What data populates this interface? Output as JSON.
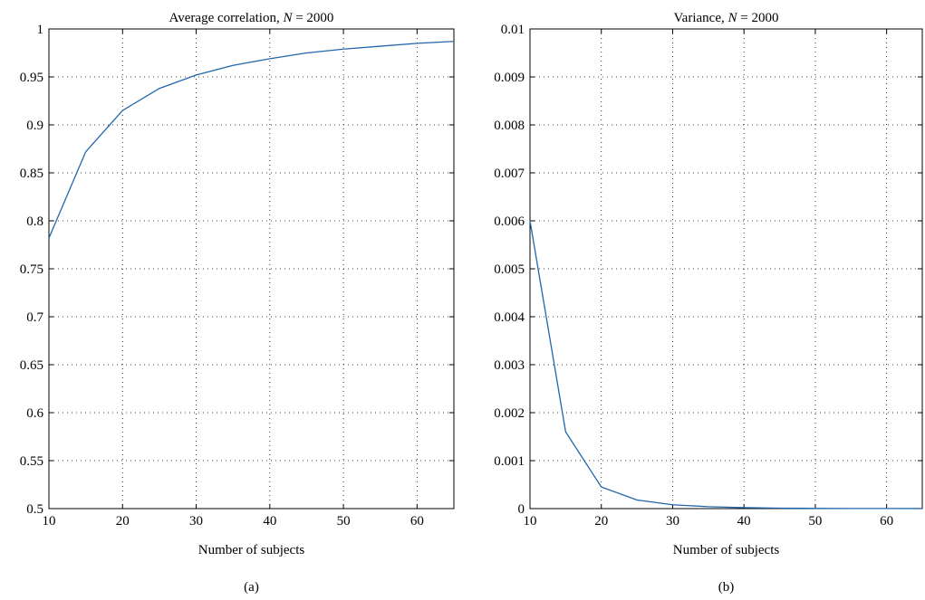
{
  "panels": [
    {
      "caption": "(a)"
    },
    {
      "caption": "(b)"
    }
  ],
  "chart_data": [
    {
      "type": "line",
      "title": "Average correlation, N = 2000",
      "title_prefix": "Average correlation, ",
      "title_var": "N",
      "title_suffix": " = 2000",
      "xlabel": "Number of subjects",
      "ylabel": "",
      "xlim": [
        10,
        65
      ],
      "ylim": [
        0.5,
        1
      ],
      "xticks": [
        10,
        20,
        30,
        40,
        50,
        60
      ],
      "yticks": [
        0.5,
        0.55,
        0.6,
        0.65,
        0.7,
        0.75,
        0.8,
        0.85,
        0.9,
        0.95,
        1
      ],
      "xtick_labels": [
        "10",
        "20",
        "30",
        "40",
        "50",
        "60"
      ],
      "ytick_labels": [
        "0.5",
        "0.55",
        "0.6",
        "0.65",
        "0.7",
        "0.75",
        "0.8",
        "0.85",
        "0.9",
        "0.95",
        "1"
      ],
      "grid": true,
      "line_color": "#2166ac",
      "series": [
        {
          "x": [
            10,
            15,
            20,
            25,
            30,
            35,
            40,
            45,
            50,
            55,
            60,
            65
          ],
          "values": [
            0.782,
            0.872,
            0.915,
            0.938,
            0.952,
            0.962,
            0.969,
            0.975,
            0.979,
            0.982,
            0.985,
            0.987
          ]
        }
      ]
    },
    {
      "type": "line",
      "title": "Variance, N = 2000",
      "title_prefix": "Variance, ",
      "title_var": "N",
      "title_suffix": " = 2000",
      "xlabel": "Number of subjects",
      "ylabel": "",
      "xlim": [
        10,
        65
      ],
      "ylim": [
        0,
        0.01
      ],
      "xticks": [
        10,
        20,
        30,
        40,
        50,
        60
      ],
      "yticks": [
        0,
        0.001,
        0.002,
        0.003,
        0.004,
        0.005,
        0.006,
        0.007,
        0.008,
        0.009,
        0.01
      ],
      "xtick_labels": [
        "10",
        "20",
        "30",
        "40",
        "50",
        "60"
      ],
      "ytick_labels": [
        "0",
        "0.001",
        "0.002",
        "0.003",
        "0.004",
        "0.005",
        "0.006",
        "0.007",
        "0.008",
        "0.009",
        "0.01"
      ],
      "grid": true,
      "line_color": "#2166ac",
      "series": [
        {
          "x": [
            10,
            15,
            20,
            25,
            30,
            35,
            40,
            45,
            50,
            55,
            60,
            65
          ],
          "values": [
            0.006,
            0.0016,
            0.00045,
            0.00018,
            8e-05,
            4e-05,
            2e-05,
            1e-05,
            5e-06,
            3e-06,
            2e-06,
            1e-06
          ]
        }
      ]
    }
  ]
}
